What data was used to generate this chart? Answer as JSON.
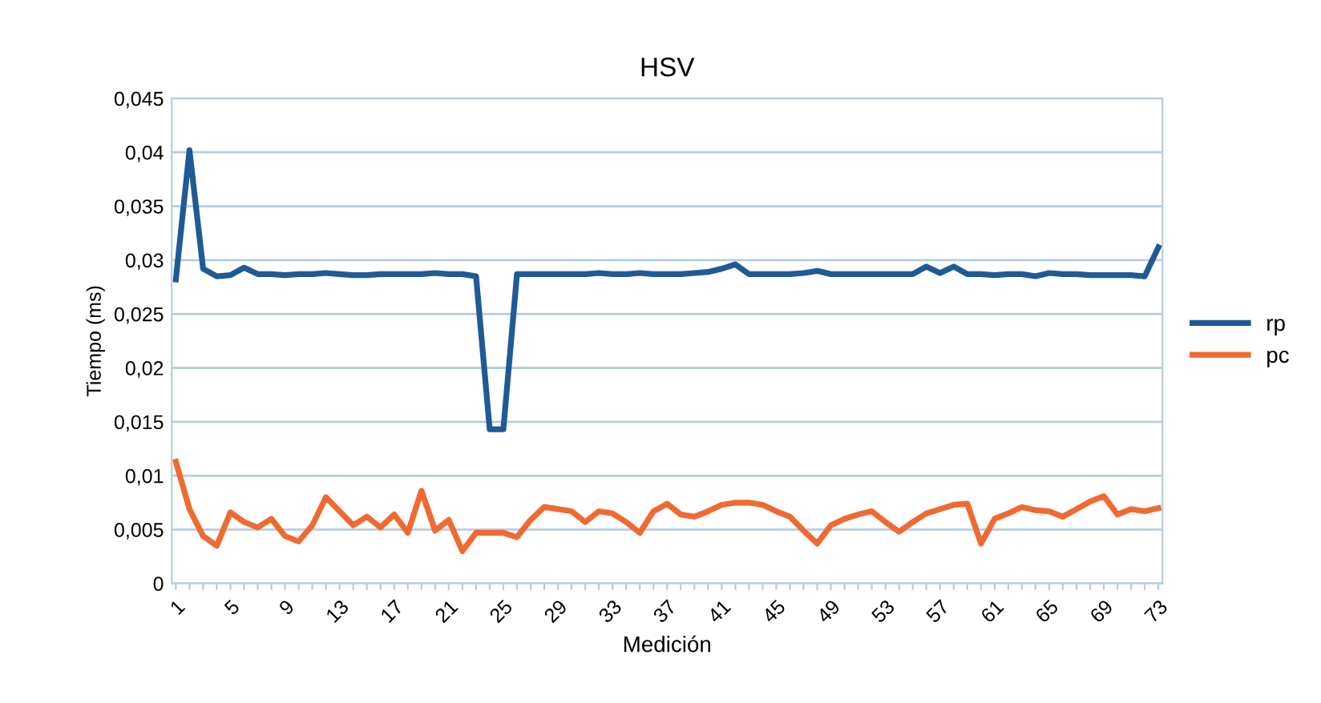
{
  "chart_data": {
    "type": "line",
    "title": "HSV",
    "xlabel": "Medición",
    "ylabel": "Tiempo (ms)",
    "categories": [
      "1",
      null,
      null,
      null,
      "5",
      null,
      null,
      null,
      "9",
      null,
      null,
      null,
      "13",
      null,
      null,
      null,
      "17",
      null,
      null,
      null,
      "21",
      null,
      null,
      null,
      "25",
      null,
      null,
      null,
      "29",
      null,
      null,
      null,
      "33",
      null,
      null,
      null,
      "37",
      null,
      null,
      null,
      "41",
      null,
      null,
      null,
      "45",
      null,
      null,
      null,
      "49",
      null,
      null,
      null,
      "53",
      null,
      null,
      null,
      "57",
      null,
      null,
      null,
      "61",
      null,
      null,
      null,
      "65",
      null,
      null,
      null,
      "69",
      null,
      null,
      null,
      "73"
    ],
    "series": [
      {
        "name": "rp",
        "color": "#1f5a96",
        "values": [
          0.0282,
          0.0402,
          0.0292,
          0.0285,
          0.0286,
          0.0293,
          0.0287,
          0.0287,
          0.0286,
          0.0287,
          0.0287,
          0.0288,
          0.0287,
          0.0286,
          0.0286,
          0.0287,
          0.0287,
          0.0287,
          0.0287,
          0.0288,
          0.0287,
          0.0287,
          0.0285,
          0.0143,
          0.0143,
          0.0287,
          0.0287,
          0.0287,
          0.0287,
          0.0287,
          0.0287,
          0.0288,
          0.0287,
          0.0287,
          0.0288,
          0.0287,
          0.0287,
          0.0287,
          0.0288,
          0.0289,
          0.0292,
          0.0296,
          0.0287,
          0.0287,
          0.0287,
          0.0287,
          0.0288,
          0.029,
          0.0287,
          0.0287,
          0.0287,
          0.0287,
          0.0287,
          0.0287,
          0.0287,
          0.0294,
          0.0288,
          0.0294,
          0.0287,
          0.0287,
          0.0286,
          0.0287,
          0.0287,
          0.0285,
          0.0288,
          0.0287,
          0.0287,
          0.0286,
          0.0286,
          0.0286,
          0.0286,
          0.0285,
          0.0312
        ]
      },
      {
        "name": "pc",
        "color": "#ef6a32",
        "values": [
          0.0113,
          0.0069,
          0.0044,
          0.0035,
          0.0066,
          0.0057,
          0.0052,
          0.006,
          0.0044,
          0.0039,
          0.0054,
          0.008,
          0.0067,
          0.0054,
          0.0062,
          0.0052,
          0.0064,
          0.0047,
          0.0086,
          0.0049,
          0.0059,
          0.003,
          0.0047,
          0.0047,
          0.0047,
          0.0043,
          0.0059,
          0.0071,
          0.0069,
          0.0067,
          0.0057,
          0.0067,
          0.0065,
          0.0057,
          0.0047,
          0.0067,
          0.0074,
          0.0064,
          0.0062,
          0.0067,
          0.0073,
          0.0075,
          0.0075,
          0.0073,
          0.0067,
          0.0062,
          0.0049,
          0.0037,
          0.0054,
          0.006,
          0.0064,
          0.0067,
          0.0057,
          0.0048,
          0.0057,
          0.0065,
          0.0069,
          0.0073,
          0.0074,
          0.0037,
          0.006,
          0.0065,
          0.0071,
          0.0068,
          0.0067,
          0.0062,
          0.0069,
          0.0076,
          0.0081,
          0.0064,
          0.0069,
          0.0067,
          0.007
        ]
      }
    ],
    "ylim": [
      0,
      0.045
    ],
    "yticks": [
      0,
      {
        "value": 0.005,
        "label": "0,005"
      },
      {
        "value": 0.01,
        "label": "0,01"
      },
      {
        "value": 0.015,
        "label": "0,015"
      },
      {
        "value": 0.02,
        "label": "0,02"
      },
      {
        "value": 0.025,
        "label": "0,025"
      },
      {
        "value": 0.03,
        "label": "0,03"
      },
      {
        "value": 0.035,
        "label": "0,035"
      },
      {
        "value": 0.04,
        "label": "0,04"
      },
      {
        "value": 0.045,
        "label": "0,045"
      }
    ],
    "grid": "y",
    "legend": "right",
    "marker": "none",
    "line_style": "solid"
  }
}
